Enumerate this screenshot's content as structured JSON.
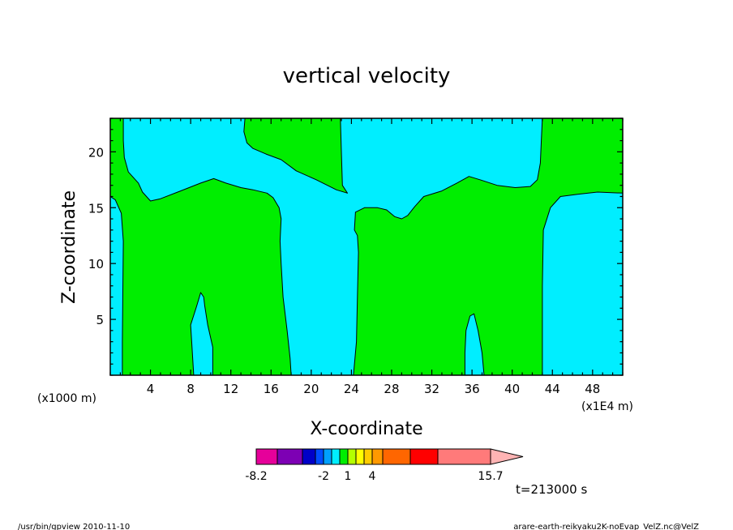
{
  "chart_data": {
    "type": "heatmap",
    "title": "vertical velocity",
    "xlabel": "X-coordinate",
    "ylabel": "Z-coordinate",
    "x_unit_left": "(x1000 m)",
    "x_unit_right": "(x1E4 m)",
    "xlim": [
      0,
      51
    ],
    "ylim": [
      0,
      23
    ],
    "x_ticks": [
      4,
      8,
      12,
      16,
      20,
      24,
      28,
      32,
      36,
      40,
      44,
      48
    ],
    "y_ticks": [
      5,
      10,
      15,
      20
    ],
    "x_tick_labels": [
      "4",
      "8",
      "12",
      "16",
      "20",
      "24",
      "28",
      "32",
      "36",
      "40",
      "44",
      "48"
    ],
    "y_tick_labels": [
      "5",
      "10",
      "15",
      "20"
    ],
    "background_color": "#00eeff",
    "regions": [
      {
        "color": "#00ee00",
        "points": [
          [
            0,
            23
          ],
          [
            1.3,
            23
          ],
          [
            1.3,
            21
          ],
          [
            1.4,
            19.5
          ],
          [
            1.8,
            18.2
          ],
          [
            2.8,
            17.2
          ],
          [
            3.2,
            16.4
          ],
          [
            4,
            15.6
          ],
          [
            5,
            15.8
          ],
          [
            7,
            16.5
          ],
          [
            9,
            17.2
          ],
          [
            10.3,
            17.6
          ],
          [
            11.5,
            17.2
          ],
          [
            13,
            16.8
          ],
          [
            14.2,
            16.6
          ],
          [
            15.6,
            16.3
          ],
          [
            16.2,
            15.9
          ],
          [
            16.8,
            15
          ],
          [
            17,
            14
          ],
          [
            16.9,
            12
          ],
          [
            17,
            10
          ],
          [
            17.2,
            7
          ],
          [
            17.6,
            4
          ],
          [
            17.9,
            1.5
          ],
          [
            18,
            0
          ],
          [
            10.2,
            0
          ],
          [
            10.2,
            2.5
          ],
          [
            9.7,
            4.5
          ],
          [
            9.4,
            6.2
          ],
          [
            9.3,
            7
          ],
          [
            9,
            7.4
          ],
          [
            8.6,
            6.2
          ],
          [
            8,
            4.5
          ],
          [
            8.1,
            3
          ],
          [
            8.3,
            0
          ],
          [
            1.2,
            0
          ],
          [
            1.2,
            3
          ],
          [
            1.3,
            12
          ],
          [
            1.1,
            14.5
          ],
          [
            0.5,
            15.7
          ],
          [
            0,
            16
          ]
        ]
      },
      {
        "color": "#00ee00",
        "points": [
          [
            13.4,
            23
          ],
          [
            22.9,
            23
          ],
          [
            23,
            20
          ],
          [
            23.1,
            17
          ],
          [
            23.6,
            16.3
          ],
          [
            22.5,
            16.6
          ],
          [
            20.5,
            17.5
          ],
          [
            18.5,
            18.3
          ],
          [
            17,
            19.3
          ],
          [
            15.5,
            19.8
          ],
          [
            14.2,
            20.3
          ],
          [
            13.6,
            20.8
          ],
          [
            13.3,
            21.8
          ]
        ]
      },
      {
        "color": "#00ee00",
        "points": [
          [
            24.2,
            0
          ],
          [
            24.5,
            3
          ],
          [
            24.6,
            7
          ],
          [
            24.7,
            11
          ],
          [
            24.6,
            12.5
          ],
          [
            24.3,
            13
          ],
          [
            24.4,
            14.6
          ],
          [
            25.3,
            15
          ],
          [
            26.6,
            15
          ],
          [
            27.5,
            14.8
          ],
          [
            28.3,
            14.2
          ],
          [
            29,
            14
          ],
          [
            29.6,
            14.3
          ],
          [
            30.3,
            15.1
          ],
          [
            31.2,
            16
          ],
          [
            33,
            16.5
          ],
          [
            34.5,
            17.2
          ],
          [
            35.7,
            17.8
          ],
          [
            36.8,
            17.5
          ],
          [
            38.5,
            17
          ],
          [
            40.3,
            16.8
          ],
          [
            41.8,
            16.9
          ],
          [
            42.5,
            17.5
          ],
          [
            42.8,
            19
          ],
          [
            42.9,
            21
          ],
          [
            43,
            23
          ],
          [
            51,
            23
          ],
          [
            51,
            16.3
          ],
          [
            48.5,
            16.4
          ],
          [
            46.5,
            16.2
          ],
          [
            44.8,
            16
          ],
          [
            43.8,
            15
          ],
          [
            43.1,
            13
          ],
          [
            43,
            8
          ],
          [
            43,
            0
          ],
          [
            37.2,
            0
          ],
          [
            37,
            2
          ],
          [
            36.6,
            4
          ],
          [
            36.2,
            5.5
          ],
          [
            35.8,
            5.3
          ],
          [
            35.4,
            4
          ],
          [
            35.3,
            2
          ],
          [
            35.3,
            0
          ]
        ]
      }
    ],
    "colorbar": {
      "colors": [
        "#e6009a",
        "#7d00b4",
        "#0000c8",
        "#004cff",
        "#00a0ff",
        "#00eeff",
        "#00ee00",
        "#b4ff00",
        "#ffff00",
        "#ffcc00",
        "#ff9900",
        "#ff6600",
        "#ff0000",
        "#ff7a7a",
        "#ffb4b4"
      ],
      "labels": [
        "-8.2",
        "-2",
        "1",
        "4",
        "15.7"
      ]
    },
    "time_label": "t=213000 s"
  },
  "footer": {
    "left": "/usr/bin/gpview  2010-11-10",
    "right": "arare-earth-reikyaku2K-noEvap_VelZ.nc@VelZ"
  }
}
